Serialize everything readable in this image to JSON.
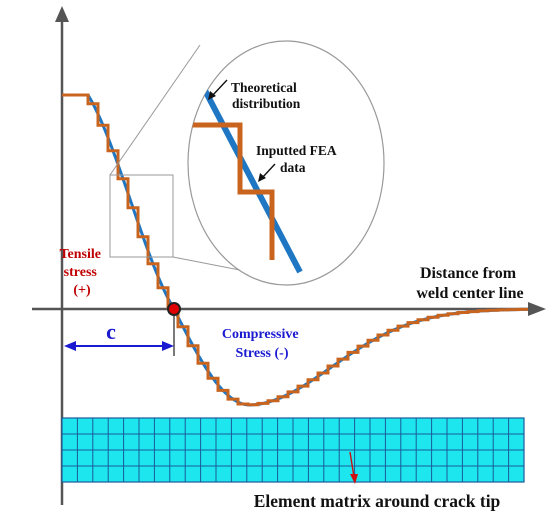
{
  "labels": {
    "distance_line1": "Distance from",
    "distance_line2": "weld center line",
    "tensile_line1": "Tensile",
    "tensile_line2": "stress",
    "tensile_line3": "(+)",
    "compressive_line1": "Compressive",
    "compressive_line2": "Stress (-)",
    "crack_length": "c",
    "theoretical_line1": "Theoretical",
    "theoretical_line2": "distribution",
    "fea_line1": "Inputted FEA",
    "fea_line2": "data",
    "mesh_caption": "Element matrix around crack tip"
  },
  "colors": {
    "theoretical": "#1f77c4",
    "fea": "#c8641e",
    "tensile_text": "#c00000",
    "compressive_text": "#1a1ad0",
    "crack_dim": "#1a1ad0",
    "mesh_fill": "#1ee6ee",
    "mesh_line": "#1a5a9a",
    "crack_point": "#e00000",
    "mesh_arrow": "#d01010"
  },
  "mesh": {
    "columns": 30,
    "rows": 4
  }
}
